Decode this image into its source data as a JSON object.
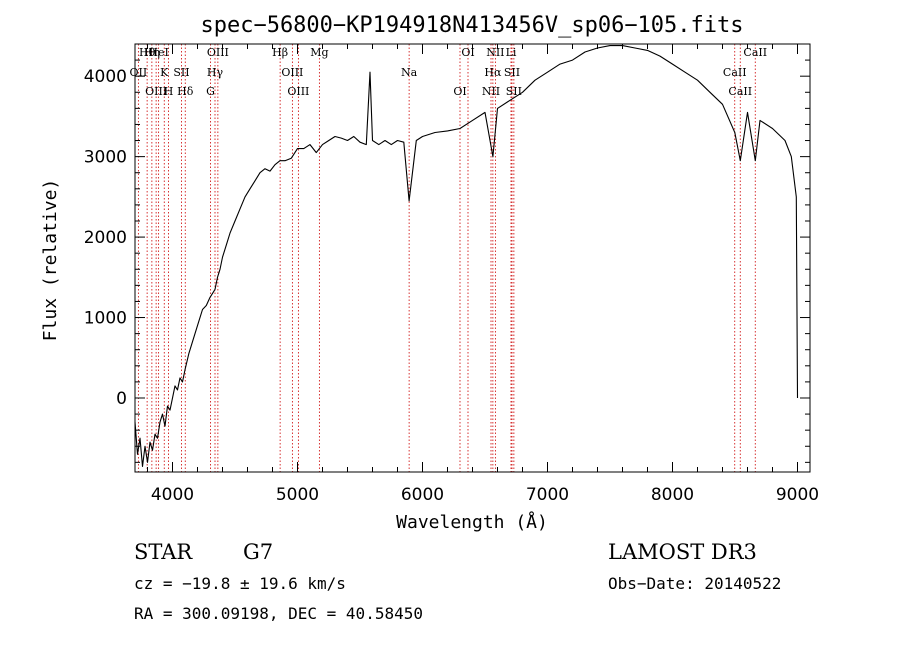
{
  "chart_data": {
    "type": "line",
    "title": "spec−56800−KP194918N413456V_sp06−105.fits",
    "xlabel": "Wavelength (Å)",
    "ylabel": "Flux (relative)",
    "xlim": [
      3700,
      9100
    ],
    "ylim": [
      -920,
      4400
    ],
    "xticks": [
      4000,
      5000,
      6000,
      7000,
      8000,
      9000
    ],
    "yticks": [
      0,
      1000,
      2000,
      3000,
      4000
    ],
    "grid": false,
    "line_color": "#000000",
    "marker_color": "#cc0000",
    "series": [
      {
        "x": [
          3700,
          3720,
          3740,
          3760,
          3780,
          3800,
          3820,
          3840,
          3860,
          3880,
          3900,
          3920,
          3940,
          3960,
          3980,
          4000,
          4020,
          4040,
          4060,
          4080,
          4100,
          4130,
          4160,
          4200,
          4240,
          4270,
          4300,
          4320,
          4340,
          4360,
          4380,
          4400,
          4430,
          4460,
          4500,
          4540,
          4580,
          4620,
          4660,
          4700,
          4740,
          4780,
          4820,
          4860,
          4900,
          4950,
          5000,
          5050,
          5100,
          5150,
          5200,
          5250,
          5300,
          5350,
          5400,
          5450,
          5500,
          5550,
          5580,
          5600,
          5650,
          5700,
          5750,
          5800,
          5850,
          5893,
          5950,
          6000,
          6100,
          6200,
          6300,
          6400,
          6500,
          6563,
          6600,
          6700,
          6800,
          6900,
          7000,
          7100,
          7200,
          7300,
          7400,
          7500,
          7600,
          7700,
          7800,
          7900,
          8000,
          8100,
          8200,
          8300,
          8400,
          8498,
          8542,
          8600,
          8662,
          8700,
          8800,
          8900,
          8950,
          8990,
          9000
        ],
        "y": [
          -300,
          -700,
          -500,
          -850,
          -600,
          -800,
          -550,
          -650,
          -450,
          -500,
          -300,
          -200,
          -350,
          -100,
          -150,
          0,
          150,
          100,
          250,
          200,
          350,
          550,
          700,
          900,
          1100,
          1150,
          1250,
          1300,
          1350,
          1500,
          1600,
          1750,
          1900,
          2050,
          2200,
          2350,
          2500,
          2600,
          2700,
          2800,
          2850,
          2820,
          2900,
          2950,
          2950,
          2980,
          3100,
          3100,
          3150,
          3050,
          3150,
          3200,
          3250,
          3230,
          3200,
          3250,
          3180,
          3150,
          4050,
          3200,
          3150,
          3200,
          3150,
          3200,
          3180,
          2450,
          3200,
          3250,
          3300,
          3320,
          3350,
          3450,
          3550,
          3000,
          3600,
          3700,
          3800,
          3950,
          4050,
          4150,
          4200,
          4300,
          4350,
          4380,
          4380,
          4350,
          4320,
          4250,
          4150,
          4050,
          3950,
          3800,
          3650,
          3300,
          2950,
          3550,
          2950,
          3450,
          3350,
          3200,
          3000,
          2500,
          0
        ]
      }
    ],
    "lines": [
      {
        "label": "Hθ",
        "x": 3797
      },
      {
        "label": "OII",
        "x": 3727
      },
      {
        "label": "OIII",
        "x": 3869
      },
      {
        "label": "Hη",
        "x": 3835
      },
      {
        "label": "K",
        "x": 3934
      },
      {
        "label": "H",
        "x": 3968
      },
      {
        "label": "HeI",
        "x": 3889
      },
      {
        "label": "SII",
        "x": 4072
      },
      {
        "label": "Hδ",
        "x": 4102
      },
      {
        "label": "OIII",
        "x": 4363
      },
      {
        "label": "Hγ",
        "x": 4340
      },
      {
        "label": "G",
        "x": 4304
      },
      {
        "label": "Hβ",
        "x": 4861
      },
      {
        "label": "OIII",
        "x": 4959
      },
      {
        "label": "OIII",
        "x": 5007
      },
      {
        "label": "Mg",
        "x": 5175
      },
      {
        "label": "Na",
        "x": 5893
      },
      {
        "label": "OI",
        "x": 6300
      },
      {
        "label": "OI",
        "x": 6364
      },
      {
        "label": "Hα",
        "x": 6563
      },
      {
        "label": "NII",
        "x": 6548
      },
      {
        "label": "NII",
        "x": 6583
      },
      {
        "label": "SII",
        "x": 6716
      },
      {
        "label": "SII",
        "x": 6731
      },
      {
        "label": "Li",
        "x": 6708
      },
      {
        "label": "CaII",
        "x": 8498
      },
      {
        "label": "CaII",
        "x": 8542
      },
      {
        "label": "CaII",
        "x": 8662
      }
    ]
  },
  "info": {
    "object_type": "STAR",
    "subclass": "G7",
    "survey": "LAMOST DR3",
    "cz": "cz = −19.8 ± 19.6 km/s",
    "obs_date": "Obs−Date: 20140522",
    "radec": "RA = 300.09198, DEC =  40.58450"
  }
}
